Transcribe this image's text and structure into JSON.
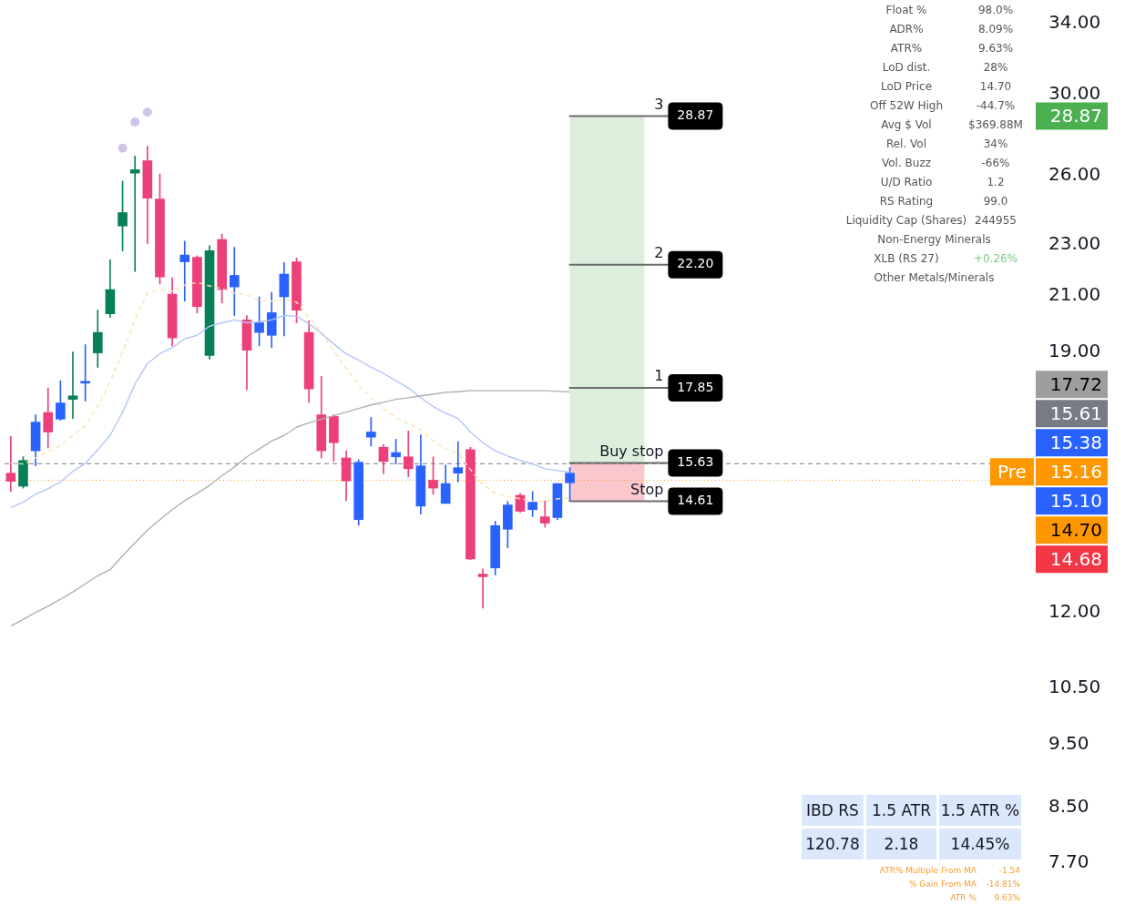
{
  "chart_data": {
    "type": "candlestick",
    "categories": [
      null,
      null,
      null,
      null,
      null,
      null,
      null,
      null,
      null,
      null,
      null,
      null,
      null,
      null,
      null,
      null,
      null,
      null,
      null,
      null,
      null,
      null,
      null,
      null,
      null,
      null,
      null,
      null,
      null,
      null,
      null,
      null,
      null,
      null,
      null,
      null,
      null,
      null,
      null,
      null,
      null,
      null,
      null,
      null,
      null,
      null,
      null,
      null,
      null,
      null,
      null,
      null,
      null,
      null,
      null,
      null,
      null,
      null,
      null,
      null,
      null,
      null,
      null,
      null,
      null,
      null,
      null,
      null,
      null,
      null,
      null,
      null,
      null,
      null,
      null,
      null,
      null,
      null,
      null,
      null,
      null,
      null,
      null
    ],
    "ohlc": [
      [
        15.35,
        16.38,
        14.86,
        15.13
      ],
      [
        15.0,
        15.8,
        14.95,
        15.7
      ],
      [
        15.97,
        17.02,
        15.55,
        16.8
      ],
      [
        17.09,
        17.85,
        16.05,
        16.51
      ],
      [
        16.89,
        18.08,
        16.86,
        17.38
      ],
      [
        17.49,
        19.02,
        16.91,
        17.6
      ],
      [
        18.0,
        19.27,
        17.44,
        18.0
      ],
      [
        18.99,
        20.48,
        18.51,
        19.69
      ],
      [
        20.35,
        22.39,
        20.22,
        21.24
      ],
      [
        23.77,
        25.73,
        22.75,
        24.34
      ],
      [
        26.1,
        26.9,
        21.93,
        26.26
      ],
      [
        26.68,
        27.37,
        23.05,
        24.97
      ],
      [
        24.93,
        26.06,
        21.45,
        21.72
      ],
      [
        21.07,
        21.69,
        19.23,
        19.5
      ],
      [
        22.31,
        23.14,
        20.81,
        22.58
      ],
      [
        22.49,
        22.55,
        20.38,
        20.61
      ],
      [
        18.9,
        22.96,
        18.78,
        22.75
      ],
      [
        23.21,
        23.43,
        20.74,
        21.24
      ],
      [
        21.34,
        22.89,
        20.29,
        21.78
      ],
      [
        20.13,
        20.29,
        17.79,
        19.08
      ],
      [
        19.69,
        20.97,
        19.23,
        20.03
      ],
      [
        19.59,
        21.14,
        19.17,
        20.39
      ],
      [
        20.97,
        22.28,
        19.57,
        21.83
      ],
      [
        22.31,
        22.46,
        20.03,
        20.48
      ],
      [
        19.69,
        20.1,
        17.4,
        17.82
      ],
      [
        17.02,
        18.22,
        15.77,
        15.97
      ],
      [
        16.97,
        17.02,
        15.67,
        16.2
      ],
      [
        15.77,
        15.97,
        14.62,
        15.14
      ],
      [
        14.14,
        15.72,
        14.0,
        15.65
      ],
      [
        16.36,
        16.94,
        16.1,
        16.51
      ],
      [
        16.07,
        16.15,
        15.33,
        15.67
      ],
      [
        15.8,
        16.3,
        15.6,
        15.92
      ],
      [
        15.8,
        16.54,
        15.25,
        15.47
      ],
      [
        14.48,
        16.43,
        14.28,
        15.55
      ],
      [
        15.16,
        15.8,
        14.79,
        14.95
      ],
      [
        14.55,
        15.57,
        14.55,
        15.07
      ],
      [
        15.35,
        16.23,
        15.11,
        15.5
      ],
      [
        16.0,
        16.07,
        13.17,
        13.19
      ],
      [
        12.84,
        12.96,
        12.09,
        12.78
      ],
      [
        12.98,
        14.1,
        12.82,
        13.99
      ],
      [
        13.9,
        14.6,
        13.45,
        14.51
      ],
      [
        14.76,
        14.81,
        14.32,
        14.35
      ],
      [
        14.39,
        14.86,
        14.21,
        14.58
      ],
      [
        14.21,
        14.62,
        13.95,
        14.05
      ],
      [
        14.19,
        15.07,
        14.14,
        15.07
      ],
      [
        15.09,
        15.5,
        14.62,
        15.35
      ],
      null,
      null,
      null,
      null,
      null,
      null,
      null,
      null,
      null,
      null,
      null,
      null,
      null,
      null,
      null,
      null,
      null,
      null,
      null,
      null,
      null,
      null,
      null,
      null,
      null,
      null,
      null,
      null,
      null,
      null,
      null,
      null,
      null,
      null,
      null,
      null,
      null
    ],
    "colors": [
      "#ec407a",
      "#087f5b",
      "#2962ff",
      "#ec407a",
      "#2962ff",
      "#087f5b",
      "#2962ff",
      "#087f5b",
      "#087f5b",
      "#087f5b",
      "#087f5b",
      "#ec407a",
      "#ec407a",
      "#ec407a",
      "#2962ff",
      "#ec407a",
      "#087f5b",
      "#ec407a",
      "#2962ff",
      "#ec407a",
      "#2962ff",
      "#2962ff",
      "#2962ff",
      "#ec407a",
      "#ec407a",
      "#ec407a",
      "#ec407a",
      "#ec407a",
      "#2962ff",
      "#2962ff",
      "#ec407a",
      "#2962ff",
      "#ec407a",
      "#2962ff",
      "#ec407a",
      "#2962ff",
      "#2962ff",
      "#ec407a",
      "#ec407a",
      "#2962ff",
      "#2962ff",
      "#ec407a",
      "#2962ff",
      "#ec407a",
      "#2962ff",
      "#2962ff",
      null,
      null,
      null,
      null,
      null,
      null,
      null,
      null,
      null,
      null,
      null,
      null,
      null,
      null,
      null,
      null,
      null,
      null,
      null,
      null,
      null,
      null,
      null,
      null,
      null,
      null,
      null,
      null,
      null,
      null,
      null,
      null,
      null,
      null,
      null,
      null,
      null
    ],
    "series": [
      {
        "type": "line",
        "color": "#b0b0b0",
        "line_style": "solid",
        "values": [
          11.71,
          11.85,
          12.0,
          12.13,
          12.28,
          12.44,
          12.62,
          12.8,
          12.94,
          13.26,
          13.57,
          13.88,
          14.14,
          14.39,
          14.62,
          14.81,
          15.02,
          15.28,
          15.52,
          15.8,
          16.02,
          16.25,
          16.41,
          16.65,
          16.78,
          16.89,
          16.99,
          17.1,
          17.21,
          17.32,
          17.4,
          17.49,
          17.54,
          17.6,
          17.65,
          17.71,
          17.73,
          17.76,
          17.76,
          17.76,
          17.76,
          17.76,
          17.76,
          17.76,
          17.74,
          17.72,
          null,
          null,
          null,
          null,
          null,
          null,
          null,
          null,
          null,
          null,
          null,
          null,
          null,
          null,
          null,
          null,
          null,
          null,
          null,
          null,
          null,
          null,
          null,
          null,
          null,
          null,
          null,
          null,
          null,
          null,
          null,
          null,
          null,
          null,
          null,
          null,
          null
        ]
      },
      {
        "type": "line",
        "color": "#b3c5f5",
        "line_style": "solid",
        "values": [
          14.44,
          14.58,
          14.79,
          14.93,
          15.11,
          15.4,
          15.62,
          16.0,
          16.41,
          17.1,
          17.97,
          18.63,
          18.96,
          19.17,
          19.47,
          19.59,
          19.91,
          20.03,
          20.13,
          20.03,
          20.06,
          20.13,
          20.29,
          20.26,
          20.0,
          19.66,
          19.29,
          18.96,
          18.75,
          18.51,
          18.31,
          18.08,
          17.85,
          17.54,
          17.27,
          17.07,
          16.91,
          16.51,
          16.2,
          15.97,
          15.82,
          15.7,
          15.6,
          15.47,
          15.42,
          15.38,
          null,
          null,
          null,
          null,
          null,
          null,
          null,
          null,
          null,
          null,
          null,
          null,
          null,
          null,
          null,
          null,
          null,
          null,
          null,
          null,
          null,
          null,
          null,
          null,
          null,
          null,
          null,
          null,
          null,
          null,
          null,
          null,
          null,
          null,
          null,
          null,
          null
        ]
      },
      {
        "type": "line",
        "color": "#ffe0b2",
        "line_style": "dashed",
        "values": [
          15.62,
          15.6,
          15.77,
          15.95,
          16.12,
          16.41,
          16.7,
          17.27,
          18.05,
          19.02,
          20.16,
          21.11,
          21.24,
          21.17,
          21.41,
          21.51,
          21.38,
          21.27,
          21.11,
          21.04,
          20.84,
          20.81,
          20.87,
          20.77,
          20.22,
          19.69,
          19.05,
          18.48,
          17.94,
          17.54,
          17.21,
          16.94,
          16.75,
          16.57,
          16.25,
          16.02,
          15.9,
          15.45,
          15.04,
          14.81,
          14.74,
          14.67,
          14.62,
          14.6,
          14.67,
          14.7,
          null,
          null,
          null,
          null,
          null,
          null,
          null,
          null,
          null,
          null,
          null,
          null,
          null,
          null,
          null,
          null,
          null,
          null,
          null,
          null,
          null,
          null,
          null,
          null,
          null,
          null,
          null,
          null,
          null,
          null,
          null,
          null,
          null,
          null,
          null,
          null,
          null
        ]
      },
      {
        "type": "scatter",
        "color": "#d1c4e9",
        "marker": "circle",
        "values": [
          null,
          null,
          null,
          null,
          null,
          null,
          null,
          null,
          null,
          27.28,
          28.57,
          29.07,
          null,
          null,
          null,
          null,
          null,
          null,
          null,
          null,
          null,
          null,
          null,
          null,
          null,
          null,
          null,
          null,
          null,
          null,
          null,
          null,
          null,
          null,
          null,
          null,
          null,
          null,
          null,
          null,
          null,
          null,
          null,
          null,
          null,
          null,
          null,
          null,
          null,
          null,
          null,
          null,
          null,
          null,
          null,
          null,
          null,
          null,
          null,
          null,
          null,
          null,
          null,
          null,
          null,
          null,
          null,
          null,
          null,
          null,
          null,
          null,
          null,
          null,
          null,
          null,
          null,
          null,
          null,
          null,
          null,
          null,
          null
        ]
      }
    ],
    "ylim": [
      7.7,
      34
    ],
    "log": true,
    "tick_labels": "y",
    "yticks": [
      {
        "value": 34,
        "label": "34.00"
      },
      {
        "value": 30,
        "label": "30.00"
      },
      {
        "value": 26,
        "label": "26.00"
      },
      {
        "value": 23,
        "label": "23.00"
      },
      {
        "value": 21,
        "label": "21.00"
      },
      {
        "value": 19,
        "label": "19.00"
      },
      {
        "value": 12,
        "label": "12.00"
      },
      {
        "value": 10.5,
        "label": "10.50"
      },
      {
        "value": 9.5,
        "label": "9.50"
      },
      {
        "value": 8.5,
        "label": "8.50"
      },
      {
        "value": 7.7,
        "label": "7.70"
      }
    ],
    "bands": [
      {
        "axis": "y",
        "from": 15.63,
        "to": 28.87,
        "color": "#dcefdc"
      },
      {
        "axis": "y",
        "from": 14.61,
        "to": 15.63,
        "color": "#fac8cc"
      }
    ],
    "ref_lines": [
      {
        "axis": "y",
        "value": 28.87,
        "label": "28.87"
      },
      {
        "axis": "y",
        "value": 22.2,
        "label": "22.20"
      },
      {
        "axis": "y",
        "value": 17.85,
        "label": "17.85"
      },
      {
        "axis": "y",
        "value": 15.63,
        "label": "15.63"
      },
      {
        "axis": "y",
        "value": 14.61,
        "label": "14.61"
      },
      {
        "axis": "y",
        "value": 15.61,
        "color": "#787b86",
        "line_style": "dashed"
      },
      {
        "axis": "y",
        "value": 15.16,
        "color": "#ff9800",
        "line_style": "dotted"
      }
    ],
    "annotations": [
      "Float %",
      "98.0%",
      "ADR%",
      "8.09%",
      "ATR%",
      "9.63%",
      "LoD dist.",
      "28%",
      "LoD Price",
      "14.70",
      "Off 52W High",
      "-44.7%",
      "Avg $ Vol",
      "$369.88M",
      "Rel. Vol",
      "34%",
      "Vol. Buzz",
      "-66%",
      "U/D Ratio",
      "1.2",
      "RS Rating",
      "99.0",
      "Liquidity Cap (Shares)",
      "244955",
      "Non-Energy Minerals",
      "XLB (RS 27)",
      "+0.26%",
      "Other Metals/Minerals",
      "IBD RS",
      "1.5 ATR",
      "1.5 ATR %",
      "120.78",
      "2.18",
      "14.45%",
      "ATR% Multiple From MA",
      "-1.54",
      "% Gain From MA",
      "-14.81%",
      "ATR %",
      "9.63%",
      "28.87",
      "17.72",
      "15.61",
      "15.38",
      "Pre",
      "15.16",
      "15.10",
      "14.70",
      "14.68",
      {
        "text": "3",
        "y": 28.87
      },
      {
        "text": "2",
        "y": 22.2
      },
      {
        "text": "1",
        "y": 17.85
      },
      {
        "text": "Buy stop",
        "y": 15.63
      },
      {
        "text": "Stop",
        "y": 14.61
      }
    ]
  }
}
